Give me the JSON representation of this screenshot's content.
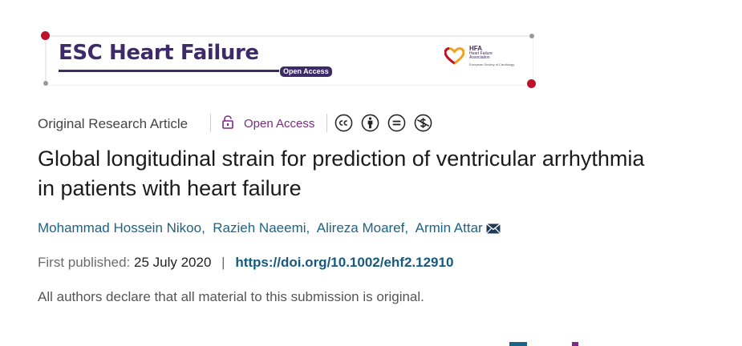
{
  "banner": {
    "journal_name": "ESC Heart Failure",
    "open_access_badge": "Open Access",
    "hfa_abbr": "HFA",
    "hfa_line1": "Heart Failure",
    "hfa_line2": "Association",
    "esc_line": "European Society of Cardiology"
  },
  "meta": {
    "article_type": "Original Research Article",
    "open_access": "Open Access",
    "license_icons": [
      "creative-commons-icon",
      "attribution-icon",
      "no-derivatives-icon",
      "non-commercial-icon"
    ]
  },
  "article": {
    "title": "Global longitudinal strain for prediction of ventricular arrhythmia in patients with heart failure",
    "authors": [
      "Mohammad Hossein Nikoo",
      "Razieh Naeemi",
      "Alireza Moaref",
      "Armin Attar"
    ],
    "author_separator": ",",
    "first_published_label": "First published:",
    "first_published_date": "25 July 2020",
    "pipe": "|",
    "doi": "https://doi.org/10.1002/ehf2.12910",
    "statement": "All authors declare that all material to this submission is original."
  },
  "colors": {
    "brand_purple": "#3d2a68",
    "accent_red": "#c0102b",
    "open_access_purple": "#7a2a82",
    "link_blue": "#1c6485"
  }
}
